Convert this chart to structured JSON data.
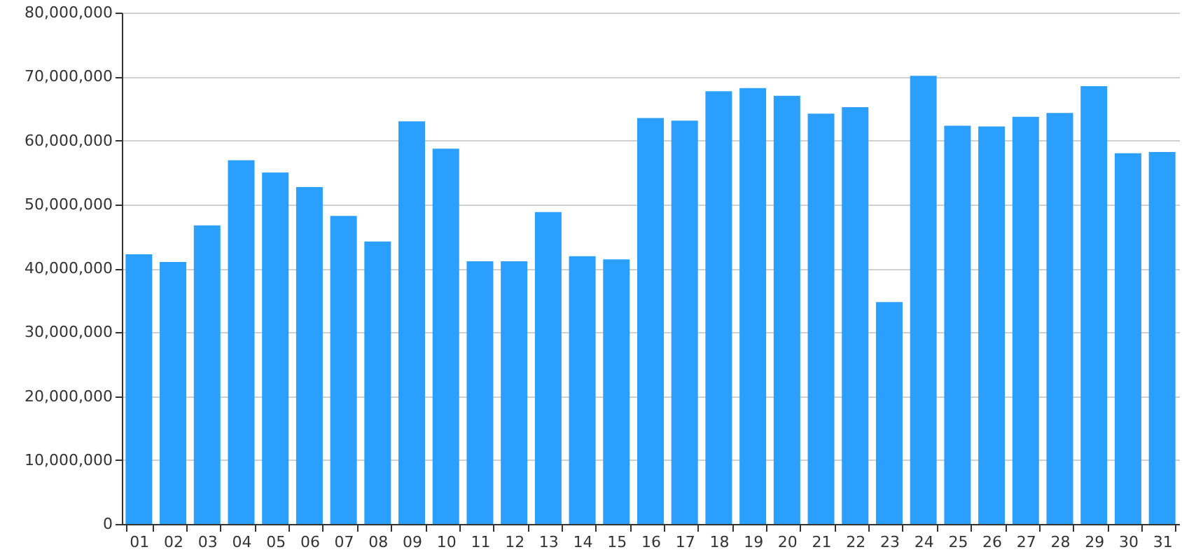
{
  "chart_data": {
    "type": "bar",
    "categories": [
      "01",
      "02",
      "03",
      "04",
      "05",
      "06",
      "07",
      "08",
      "09",
      "10",
      "11",
      "12",
      "13",
      "14",
      "15",
      "16",
      "17",
      "18",
      "19",
      "20",
      "21",
      "22",
      "23",
      "24",
      "25",
      "26",
      "27",
      "28",
      "29",
      "30",
      "31"
    ],
    "values": [
      42200000,
      41000000,
      46700000,
      56900000,
      55000000,
      52700000,
      48200000,
      44200000,
      63000000,
      58700000,
      41100000,
      41100000,
      48800000,
      41900000,
      41400000,
      63500000,
      63100000,
      67700000,
      68200000,
      67000000,
      64200000,
      65200000,
      34700000,
      70100000,
      62300000,
      62200000,
      63700000,
      64300000,
      68500000,
      58000000,
      58200000
    ],
    "color": "#2a9ffd",
    "ylim": [
      0,
      80000000
    ],
    "yticks": [
      0,
      {
        "value": 10000000,
        "label": "10,000,000"
      },
      {
        "value": 20000000,
        "label": "20,000,000"
      },
      {
        "value": 30000000,
        "label": "30,000,000"
      },
      {
        "value": 40000000,
        "label": "40,000,000"
      },
      {
        "value": 50000000,
        "label": "50,000,000"
      },
      {
        "value": 60000000,
        "label": "60,000,000"
      },
      {
        "value": 70000000,
        "label": "70,000,000"
      },
      {
        "value": 80000000,
        "label": "80,000,000"
      }
    ],
    "grid": "y"
  }
}
